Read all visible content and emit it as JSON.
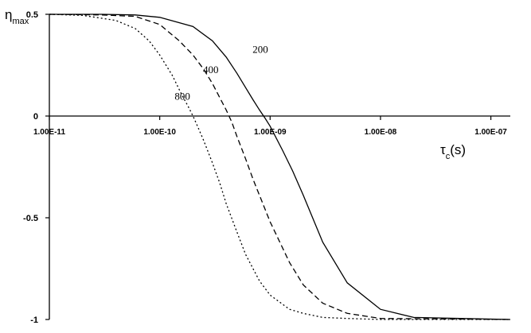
{
  "chart_data": {
    "type": "line",
    "title": "",
    "xlabel": {
      "main": "τ",
      "sub": "c",
      "unit": "(s)"
    },
    "ylabel": {
      "main": "η",
      "sub": "max"
    },
    "x_scale": "log",
    "xlim": [
      1e-11,
      1.5e-07
    ],
    "ylim": [
      -1,
      0.5
    ],
    "x_ticks": [
      {
        "value": 1e-11,
        "label": "1.00E-11"
      },
      {
        "value": 1e-10,
        "label": "1.00E-10"
      },
      {
        "value": 1e-09,
        "label": "1.00E-09"
      },
      {
        "value": 1e-08,
        "label": "1.00E-08"
      },
      {
        "value": 1e-07,
        "label": "1.00E-07"
      }
    ],
    "y_ticks": [
      {
        "value": 0.5,
        "label": "0.5"
      },
      {
        "value": 0,
        "label": "0"
      },
      {
        "value": -0.5,
        "label": "-0.5"
      },
      {
        "value": -1,
        "label": "-1"
      }
    ],
    "grid": false,
    "legend": "none",
    "series": [
      {
        "name": "200",
        "style": "solid",
        "x": [
          1e-11,
          3e-11,
          6e-11,
          1e-10,
          2e-10,
          3e-10,
          4e-10,
          5e-10,
          6e-10,
          7e-10,
          8e-10,
          9e-10,
          1e-09,
          1.3e-09,
          1.6e-09,
          2e-09,
          3e-09,
          5e-09,
          1e-08,
          2e-08,
          1.5e-07
        ],
        "y": [
          0.5,
          0.5,
          0.497,
          0.485,
          0.44,
          0.37,
          0.29,
          0.21,
          0.14,
          0.08,
          0.03,
          -0.01,
          -0.05,
          -0.17,
          -0.27,
          -0.39,
          -0.62,
          -0.82,
          -0.95,
          -0.99,
          -1.0
        ]
      },
      {
        "name": "400",
        "style": "dashed",
        "x": [
          1e-11,
          3e-11,
          6e-11,
          1e-10,
          1.5e-10,
          2e-10,
          2.5e-10,
          3e-10,
          3.5e-10,
          4e-10,
          4.5e-10,
          5e-10,
          6e-10,
          7e-10,
          1e-09,
          1.5e-09,
          2e-09,
          3e-09,
          5e-09,
          1e-08,
          1.5e-07
        ],
        "y": [
          0.5,
          0.497,
          0.49,
          0.45,
          0.37,
          0.3,
          0.23,
          0.16,
          0.09,
          0.03,
          -0.03,
          -0.1,
          -0.21,
          -0.31,
          -0.52,
          -0.72,
          -0.83,
          -0.92,
          -0.97,
          -0.995,
          -1.0
        ]
      },
      {
        "name": "800",
        "style": "dotted",
        "x": [
          1e-11,
          2e-11,
          4e-11,
          6e-11,
          8e-11,
          1e-10,
          1.3e-10,
          1.6e-10,
          1.8e-10,
          2e-10,
          2.2e-10,
          2.5e-10,
          3e-10,
          3.5e-10,
          4e-10,
          5e-10,
          6e-10,
          8e-10,
          1e-09,
          1.5e-09,
          2e-09,
          3e-09,
          5e-09,
          1e-08,
          1.5e-07
        ],
        "y": [
          0.5,
          0.495,
          0.47,
          0.43,
          0.37,
          0.3,
          0.2,
          0.1,
          0.05,
          0.0,
          -0.05,
          -0.12,
          -0.23,
          -0.33,
          -0.43,
          -0.57,
          -0.68,
          -0.81,
          -0.88,
          -0.95,
          -0.97,
          -0.99,
          -0.995,
          -1.0,
          -1.0
        ]
      }
    ]
  }
}
